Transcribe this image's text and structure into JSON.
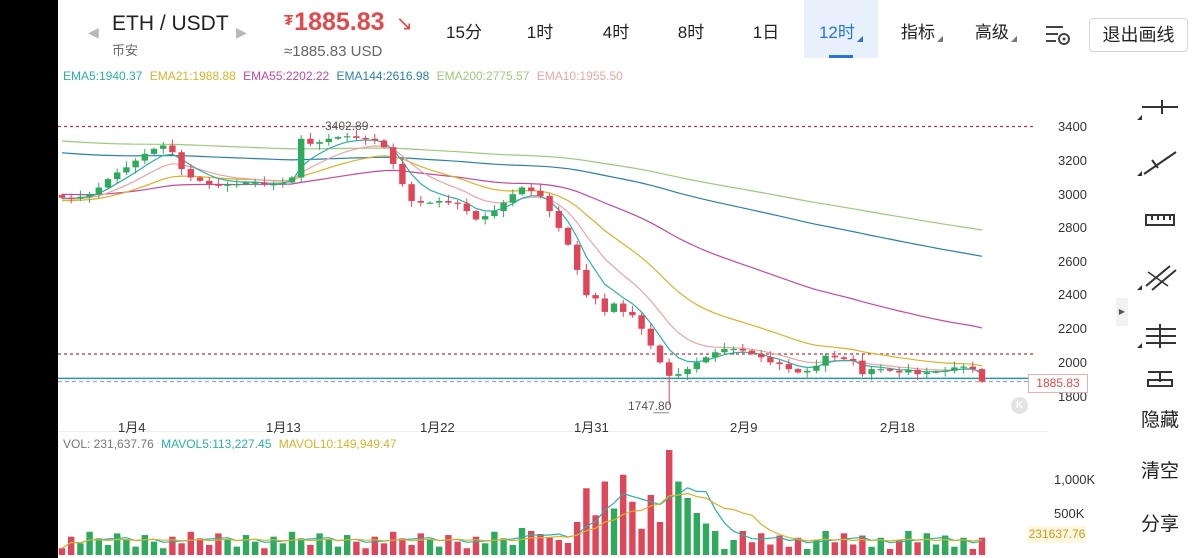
{
  "header": {
    "pair": "ETH / USDT",
    "exchange": "币安",
    "currency_symbol": "₮",
    "last_price": "1885.83",
    "direction_arrow": "↘",
    "fiat_price": "≈1885.83 USD",
    "timeframes": [
      "15分",
      "1时",
      "4时",
      "8时",
      "1日",
      "12时"
    ],
    "active_timeframe": "12时",
    "indicator_label": "指标",
    "advanced_label": "高级",
    "exit_drawing_label": "退出画线"
  },
  "indicators": {
    "ema": [
      {
        "label": "EMA5:1940.37",
        "color": "#2bb0a5"
      },
      {
        "label": "EMA21:1988.88",
        "color": "#d9b22a"
      },
      {
        "label": "EMA55:2202.22",
        "color": "#c04a9b"
      },
      {
        "label": "EMA144:2616.98",
        "color": "#2c7fa8"
      },
      {
        "label": "EMA200:2775.57",
        "color": "#9cc97a"
      },
      {
        "label": "EMA10:1955.50",
        "color": "#e8a5a5"
      }
    ],
    "vol": [
      {
        "label": "VOL: 231,637.76",
        "color": "#777777"
      },
      {
        "label": "MAVOL5:113,227.45",
        "color": "#2bb0a5"
      },
      {
        "label": "MAVOL10:149,949.47",
        "color": "#d9b22a"
      }
    ]
  },
  "chart_data": {
    "type": "candlestick",
    "y_ticks": [
      "3400",
      "3200",
      "3000",
      "2800",
      "2600",
      "2400",
      "2200",
      "2000",
      "1800"
    ],
    "ylim": [
      1700,
      3500
    ],
    "x_ticks": [
      "1月4",
      "1月13",
      "1月22",
      "1月31",
      "2月9",
      "2月18"
    ],
    "current_price_tag": "1885.83",
    "high_label": "3402.89",
    "low_label": "1747.80",
    "horizontal_lines": [
      3402.89,
      2050,
      1905
    ],
    "close_series": [
      2980,
      2975,
      2985,
      3000,
      3040,
      3090,
      3130,
      3160,
      3200,
      3240,
      3270,
      3290,
      3250,
      3150,
      3100,
      3080,
      3060,
      3050,
      3060,
      3060,
      3070,
      3070,
      3060,
      3060,
      3070,
      3100,
      3330,
      3300,
      3310,
      3330,
      3340,
      3345,
      3335,
      3330,
      3320,
      3280,
      3180,
      3060,
      2960,
      2950,
      2950,
      2960,
      2950,
      2945,
      2900,
      2850,
      2870,
      2900,
      2950,
      3000,
      3040,
      3020,
      2990,
      2900,
      2800,
      2700,
      2550,
      2400,
      2380,
      2300,
      2350,
      2300,
      2280,
      2200,
      2100,
      2000,
      1920,
      1930,
      1960,
      2000,
      2030,
      2060,
      2080,
      2080,
      2070,
      2050,
      2030,
      2000,
      1990,
      1960,
      1940,
      1950,
      1980,
      2040,
      2030,
      2020,
      2010,
      1930,
      1960,
      1960,
      1950,
      1940,
      1955,
      1930,
      1940,
      1945,
      1950,
      1970,
      1975,
      1960,
      1885.83
    ],
    "volume": {
      "y_ticks": [
        "1,000K",
        "500K"
      ],
      "ylim": [
        0,
        1550000
      ],
      "current_volume_tag": "231637.76"
    }
  },
  "sidebar": {
    "tools": [
      "horizontal-line-tool-icon",
      "trend-line-tool-icon",
      "ruler-tool-icon",
      "parallel-channel-tool-icon",
      "multi-line-tool-icon",
      "text-annotation-tool-icon"
    ],
    "hide_label": "隐藏",
    "clear_label": "清空",
    "share_label": "分享"
  }
}
